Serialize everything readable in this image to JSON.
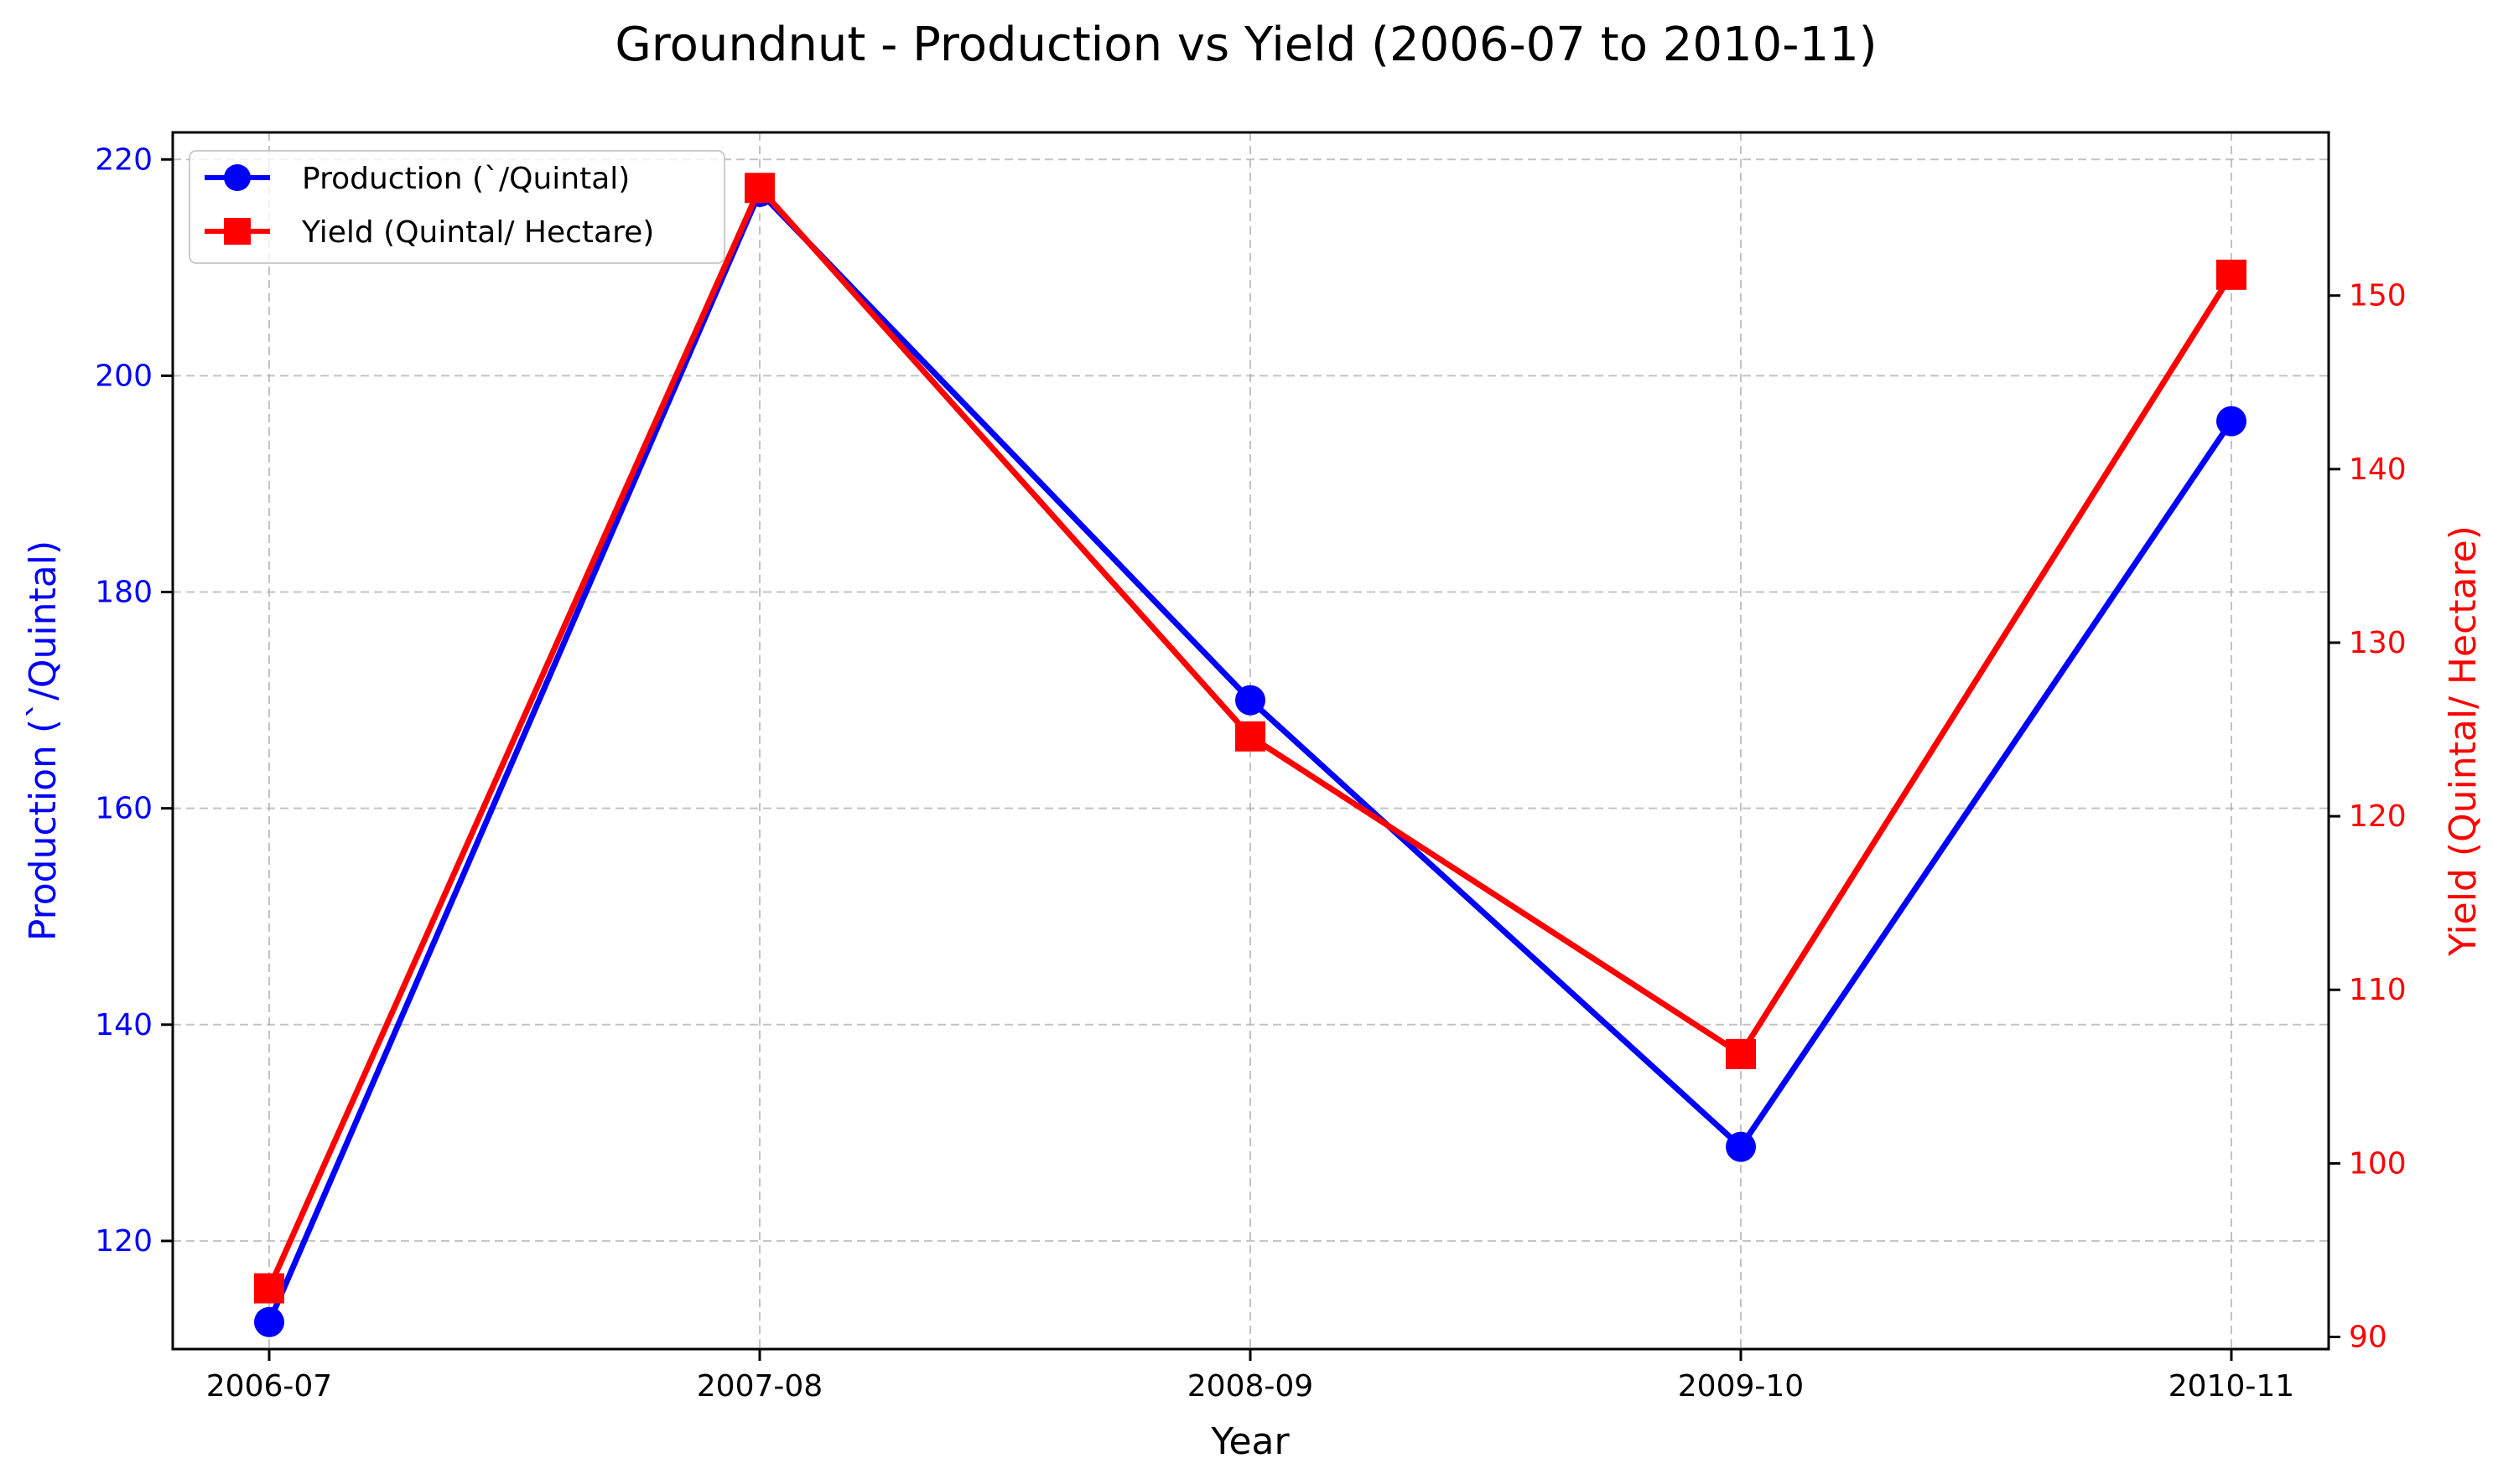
{
  "chart_data": {
    "type": "line",
    "title": "Groundnut - Production vs Yield (2006-07 to 2010-11)",
    "xlabel": "Year",
    "categories": [
      "2006-07",
      "2007-08",
      "2008-09",
      "2009-10",
      "2010-11"
    ],
    "grid": true,
    "legend_placement": "upper-left",
    "y_left": {
      "label": "Production (`/Quintal)",
      "color": "#0000ff",
      "ticks": [
        120,
        140,
        160,
        180,
        200,
        220
      ],
      "lim": [
        110,
        222.5
      ]
    },
    "y_right": {
      "label": "Yield (Quintal/ Hectare)",
      "color": "#ff0000",
      "ticks": [
        90,
        100,
        110,
        120,
        130,
        140,
        150
      ],
      "lim": [
        89.3,
        159.4
      ]
    },
    "series": [
      {
        "name": "Production (`/Quintal)",
        "axis": "left",
        "color": "#0000ff",
        "marker": "circle",
        "values": [
          112.5,
          217.0,
          170.0,
          128.7,
          195.8
        ]
      },
      {
        "name": "Yield (Quintal/ Hectare)",
        "axis": "right",
        "color": "#ff0000",
        "marker": "square",
        "values": [
          92.8,
          156.2,
          124.6,
          106.3,
          151.2
        ]
      }
    ]
  }
}
